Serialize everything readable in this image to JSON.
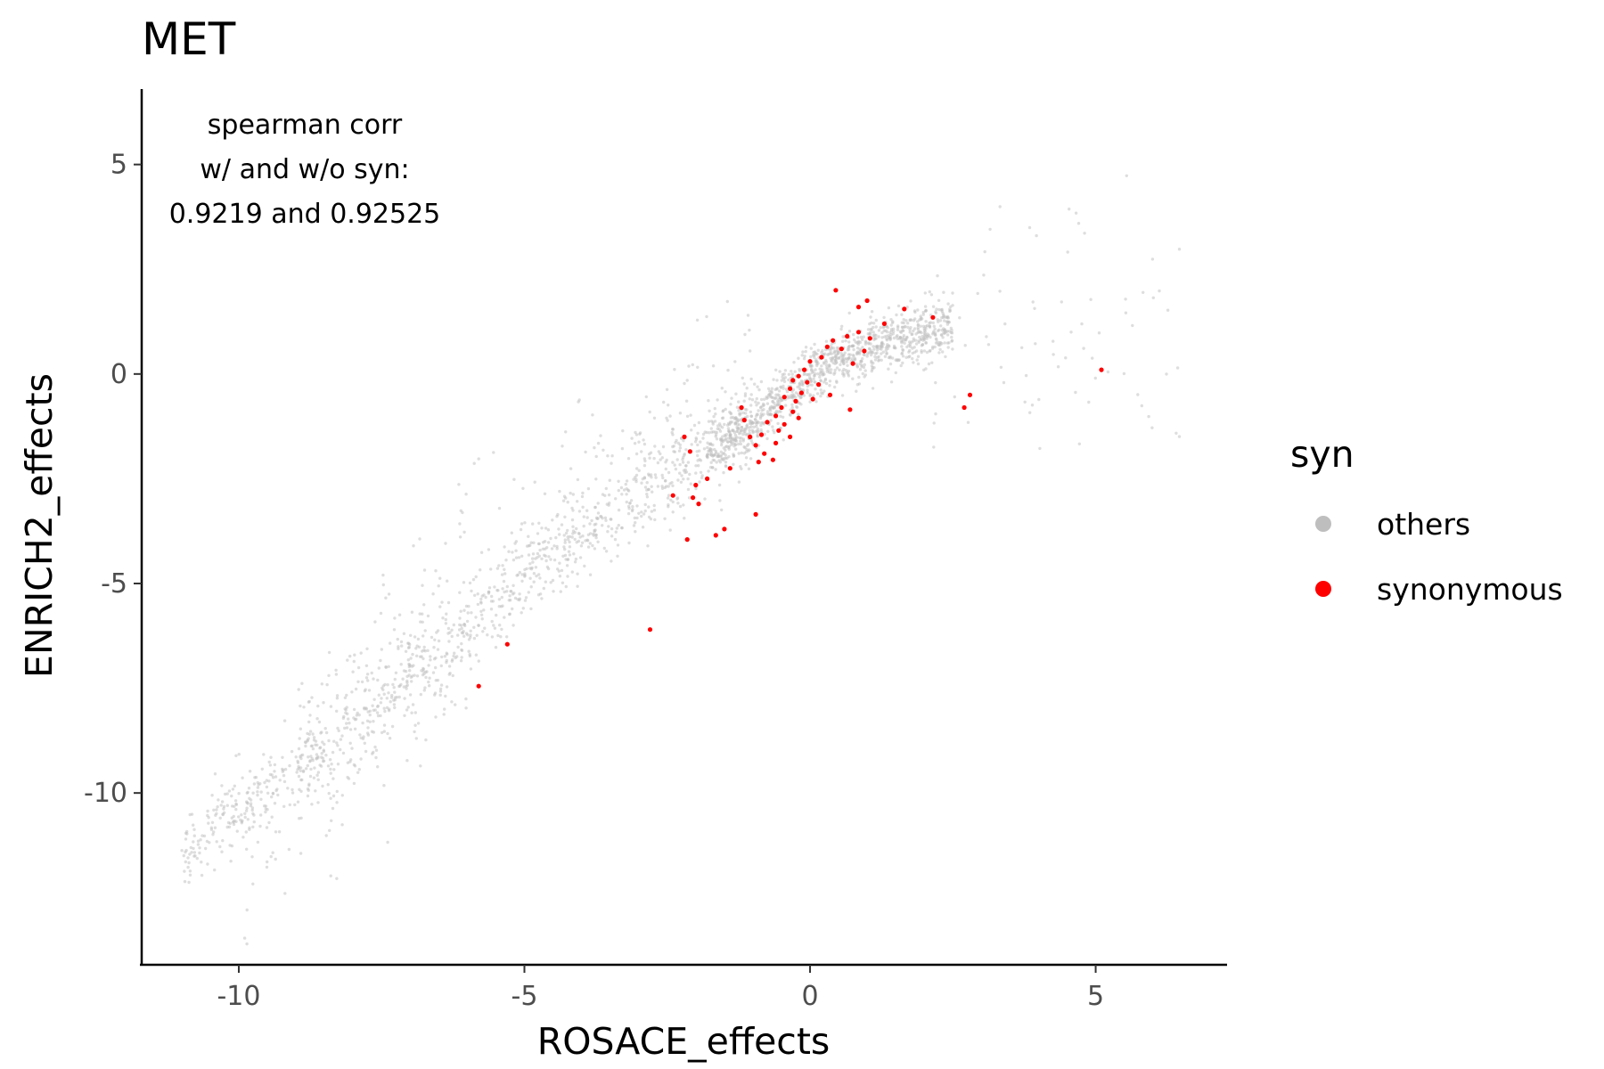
{
  "chart_data": {
    "type": "scatter",
    "title": "MET",
    "xlabel": "ROSACE_effects",
    "ylabel": "ENRICH2_effects",
    "xlim": [
      -11.7,
      7.3
    ],
    "ylim": [
      -14.1,
      6.8
    ],
    "x_ticks": [
      -10,
      -5,
      0,
      5
    ],
    "x_tick_labels": [
      "-10",
      "-5",
      "0",
      "5"
    ],
    "y_ticks": [
      -10,
      -5,
      0,
      5
    ],
    "y_tick_labels": [
      "-10",
      "-5",
      "0",
      "5"
    ],
    "grid": false,
    "legend": {
      "title": "syn",
      "position": "right",
      "entries": [
        {
          "label": "others",
          "color": "#bebebe"
        },
        {
          "label": "synonymous",
          "color": "#ff0000"
        }
      ]
    },
    "annotation": [
      "spearman corr",
      "w/ and w/o syn:",
      "0.9219 and 0.92525"
    ],
    "series": [
      {
        "label": "others",
        "color": "#bebebe",
        "point_count_estimate": 2600,
        "trend": [
          [
            -11.0,
            -11.5
          ],
          [
            -10.0,
            -10.4
          ],
          [
            -9.0,
            -9.5
          ],
          [
            -8.0,
            -8.5
          ],
          [
            -7.0,
            -7.2
          ],
          [
            -6.0,
            -6.2
          ],
          [
            -5.0,
            -5.0
          ],
          [
            -4.0,
            -3.9
          ],
          [
            -3.0,
            -3.0
          ],
          [
            -2.0,
            -2.1
          ],
          [
            -1.0,
            -1.2
          ],
          [
            -0.5,
            -0.6
          ],
          [
            0.0,
            0.0
          ],
          [
            0.5,
            0.3
          ],
          [
            1.0,
            0.6
          ],
          [
            1.5,
            0.8
          ],
          [
            2.0,
            1.0
          ],
          [
            2.5,
            1.2
          ]
        ]
      },
      {
        "label": "synonymous",
        "color": "#ff0000",
        "points": [
          [
            0.45,
            2.0
          ],
          [
            1.0,
            1.75
          ],
          [
            0.85,
            1.6
          ],
          [
            1.65,
            1.55
          ],
          [
            2.15,
            1.35
          ],
          [
            1.3,
            1.2
          ],
          [
            0.65,
            0.9
          ],
          [
            0.85,
            1.0
          ],
          [
            0.4,
            0.8
          ],
          [
            1.05,
            0.85
          ],
          [
            0.3,
            0.65
          ],
          [
            0.55,
            0.6
          ],
          [
            0.95,
            0.55
          ],
          [
            0.2,
            0.4
          ],
          [
            0.75,
            0.25
          ],
          [
            0.0,
            0.3
          ],
          [
            -0.1,
            0.1
          ],
          [
            -0.2,
            -0.05
          ],
          [
            -0.3,
            -0.15
          ],
          [
            -0.05,
            -0.2
          ],
          [
            -0.35,
            -0.35
          ],
          [
            -0.15,
            -0.45
          ],
          [
            -0.45,
            -0.55
          ],
          [
            -0.25,
            -0.65
          ],
          [
            0.05,
            -0.6
          ],
          [
            -0.5,
            -0.8
          ],
          [
            -0.3,
            -0.9
          ],
          [
            -0.6,
            -1.0
          ],
          [
            -0.75,
            -1.15
          ],
          [
            -0.45,
            -1.2
          ],
          [
            -0.2,
            -1.05
          ],
          [
            -0.55,
            -1.35
          ],
          [
            -0.85,
            -1.45
          ],
          [
            -0.35,
            -1.5
          ],
          [
            -1.2,
            -0.8
          ],
          [
            -1.15,
            -1.1
          ],
          [
            -1.05,
            -1.5
          ],
          [
            -0.95,
            -1.7
          ],
          [
            -0.8,
            -1.9
          ],
          [
            -0.65,
            -2.05
          ],
          [
            -0.9,
            -2.1
          ],
          [
            -0.6,
            -1.65
          ],
          [
            0.35,
            -0.5
          ],
          [
            0.7,
            -0.85
          ],
          [
            0.15,
            -0.25
          ],
          [
            -2.2,
            -1.5
          ],
          [
            -2.1,
            -1.85
          ],
          [
            -1.4,
            -2.25
          ],
          [
            -2.4,
            -2.9
          ],
          [
            -2.0,
            -2.65
          ],
          [
            -2.05,
            -2.95
          ],
          [
            -1.95,
            -3.1
          ],
          [
            -1.8,
            -2.5
          ],
          [
            -0.95,
            -3.35
          ],
          [
            -2.15,
            -3.95
          ],
          [
            -1.65,
            -3.85
          ],
          [
            -1.5,
            -3.7
          ],
          [
            -2.8,
            -6.1
          ],
          [
            -5.3,
            -6.45
          ],
          [
            -5.8,
            -7.45
          ],
          [
            2.8,
            -0.5
          ],
          [
            2.7,
            -0.8
          ],
          [
            5.1,
            0.1
          ]
        ]
      }
    ]
  }
}
